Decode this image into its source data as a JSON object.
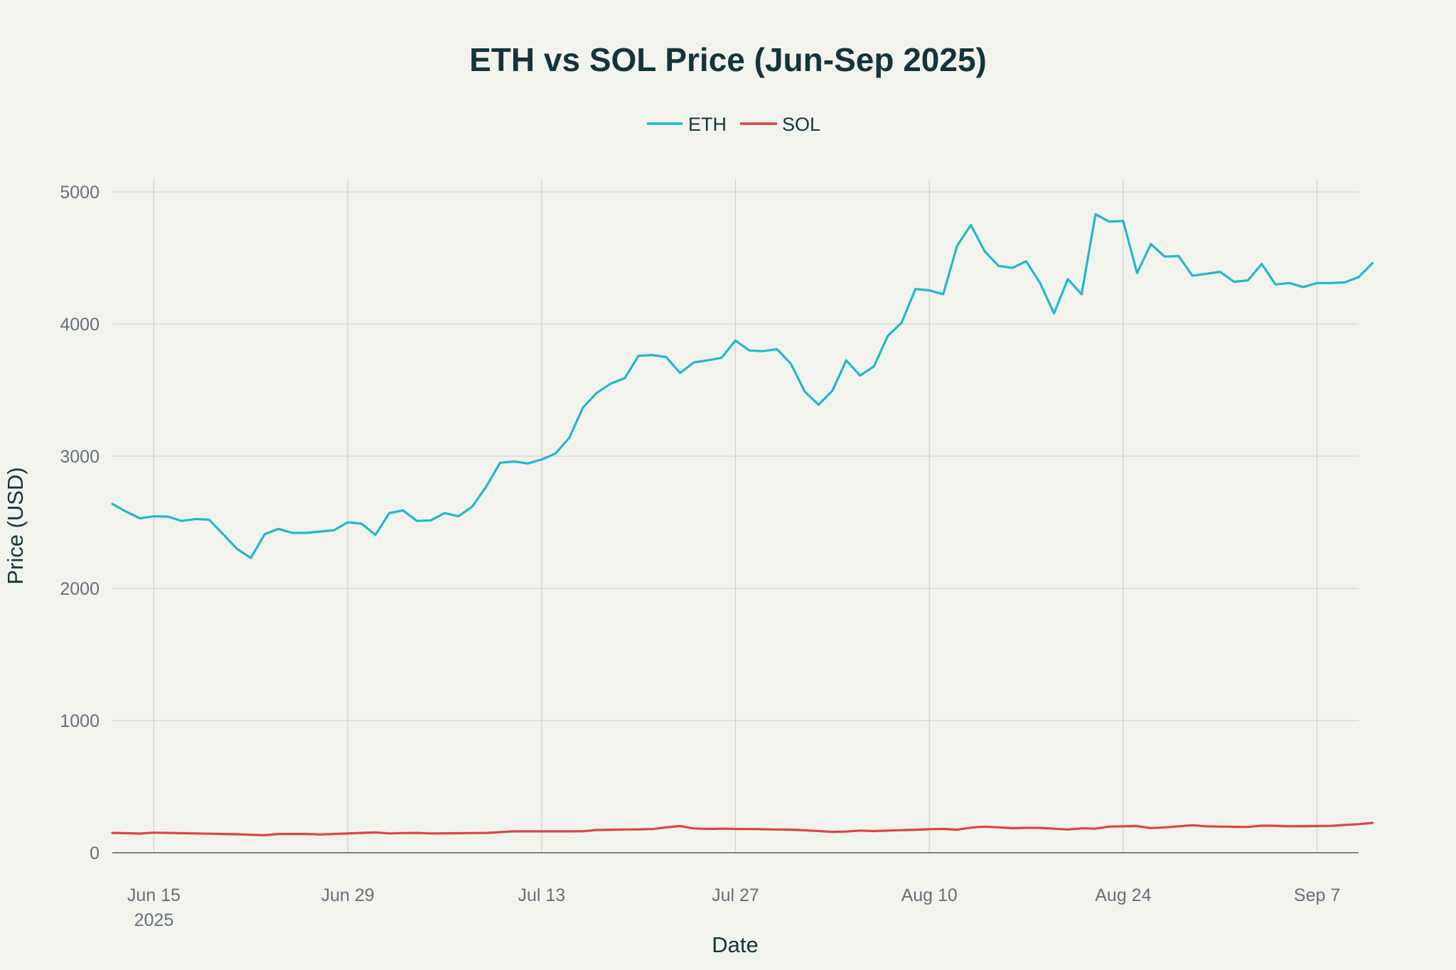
{
  "chart_data": {
    "type": "line",
    "title": "ETH vs SOL Price (Jun-Sep 2025)",
    "xlabel": "Date",
    "ylabel": "Price (USD)",
    "x_start": "2025-06-12",
    "x_end": "2025-09-10",
    "x_ticks": [
      {
        "date": "2025-06-15",
        "label": "Jun 15",
        "sublabel": "2025"
      },
      {
        "date": "2025-06-29",
        "label": "Jun 29"
      },
      {
        "date": "2025-07-13",
        "label": "Jul 13"
      },
      {
        "date": "2025-07-27",
        "label": "Jul 27"
      },
      {
        "date": "2025-08-10",
        "label": "Aug 10"
      },
      {
        "date": "2025-08-24",
        "label": "Aug 24"
      },
      {
        "date": "2025-09-07",
        "label": "Sep 7"
      }
    ],
    "ylim": [
      0,
      5000
    ],
    "y_ticks": [
      0,
      1000,
      2000,
      3000,
      4000,
      5000
    ],
    "grid": true,
    "legend_position": "top-center",
    "series": [
      {
        "name": "ETH",
        "color": "#1fb8cd",
        "values": [
          2640,
          2580,
          2530,
          2545,
          2543,
          2510,
          2525,
          2520,
          2410,
          2300,
          2230,
          2410,
          2450,
          2420,
          2420,
          2430,
          2440,
          2500,
          2490,
          2405,
          2570,
          2590,
          2510,
          2515,
          2570,
          2545,
          2620,
          2770,
          2950,
          2960,
          2945,
          2975,
          3020,
          3140,
          3370,
          3480,
          3550,
          3590,
          3760,
          3765,
          3750,
          3630,
          3710,
          3725,
          3745,
          3875,
          3800,
          3795,
          3810,
          3700,
          3490,
          3390,
          3495,
          3725,
          3610,
          3680,
          3910,
          4010,
          4265,
          4255,
          4225,
          4590,
          4750,
          4550,
          4440,
          4425,
          4475,
          4310,
          4080,
          4340,
          4225,
          4830,
          4775,
          4780,
          4385,
          4605,
          4510,
          4515,
          4365,
          4380,
          4395,
          4320,
          4330,
          4455,
          4300,
          4310,
          4280,
          4310,
          4310,
          4315,
          4355,
          4460
        ]
      },
      {
        "name": "SOL",
        "color": "#db4545",
        "values": [
          150,
          148,
          145,
          152,
          150,
          148,
          146,
          144,
          142,
          140,
          136,
          132,
          142,
          142,
          142,
          138,
          142,
          146,
          150,
          154,
          146,
          149,
          150,
          146,
          147,
          148,
          149,
          150,
          156,
          162,
          162,
          162,
          162,
          162,
          163,
          172,
          174,
          176,
          177,
          179,
          192,
          202,
          184,
          180,
          182,
          180,
          179,
          178,
          176,
          175,
          170,
          164,
          158,
          160,
          168,
          164,
          168,
          171,
          174,
          178,
          180,
          174,
          190,
          198,
          192,
          186,
          188,
          188,
          182,
          176,
          185,
          182,
          198,
          200,
          202,
          186,
          192,
          200,
          208,
          200,
          198,
          196,
          195,
          205,
          204,
          200,
          201,
          202,
          203,
          210,
          216,
          226
        ]
      }
    ]
  }
}
